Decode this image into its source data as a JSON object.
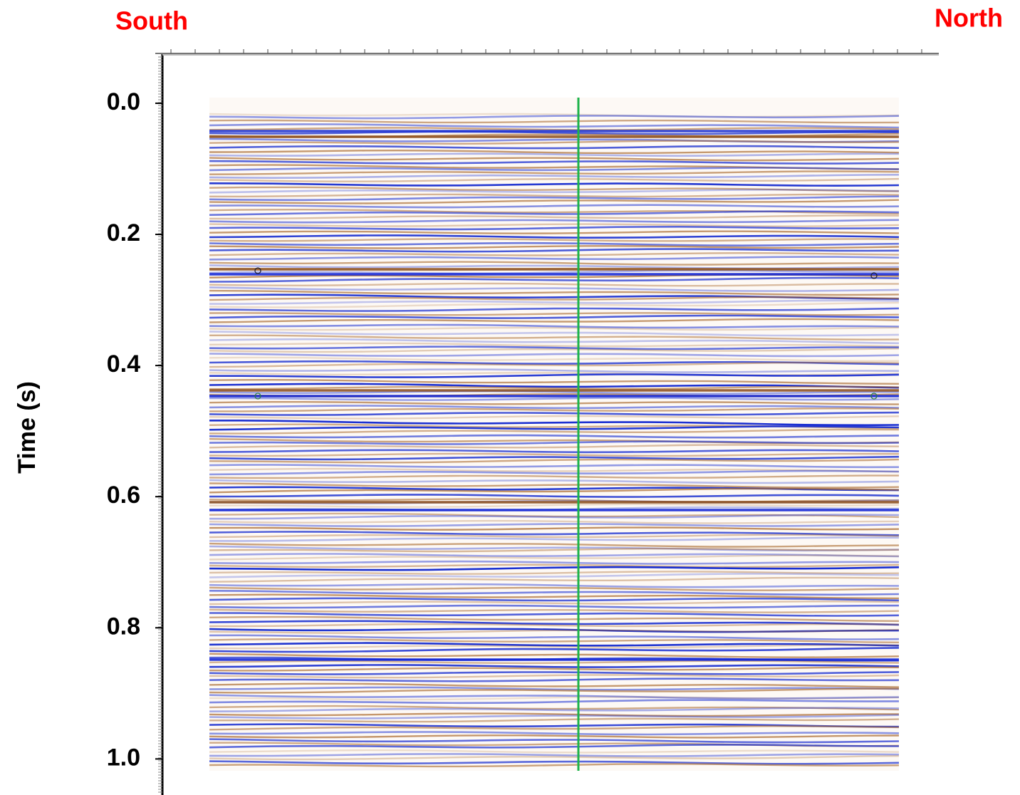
{
  "chart_data": {
    "type": "seismic",
    "left_label": "South",
    "right_label": "North",
    "ylabel": "Time (s)",
    "ylim": [
      -0.076,
      1.055
    ],
    "yticks": [
      {
        "value": 0,
        "label": "0.0"
      },
      {
        "value": 0.2,
        "label": "0.2"
      },
      {
        "value": 0.4,
        "label": "0.4"
      },
      {
        "value": 0.6,
        "label": "0.6"
      },
      {
        "value": 0.8,
        "label": "0.8"
      },
      {
        "value": 1,
        "label": "1.0"
      }
    ]
  }
}
